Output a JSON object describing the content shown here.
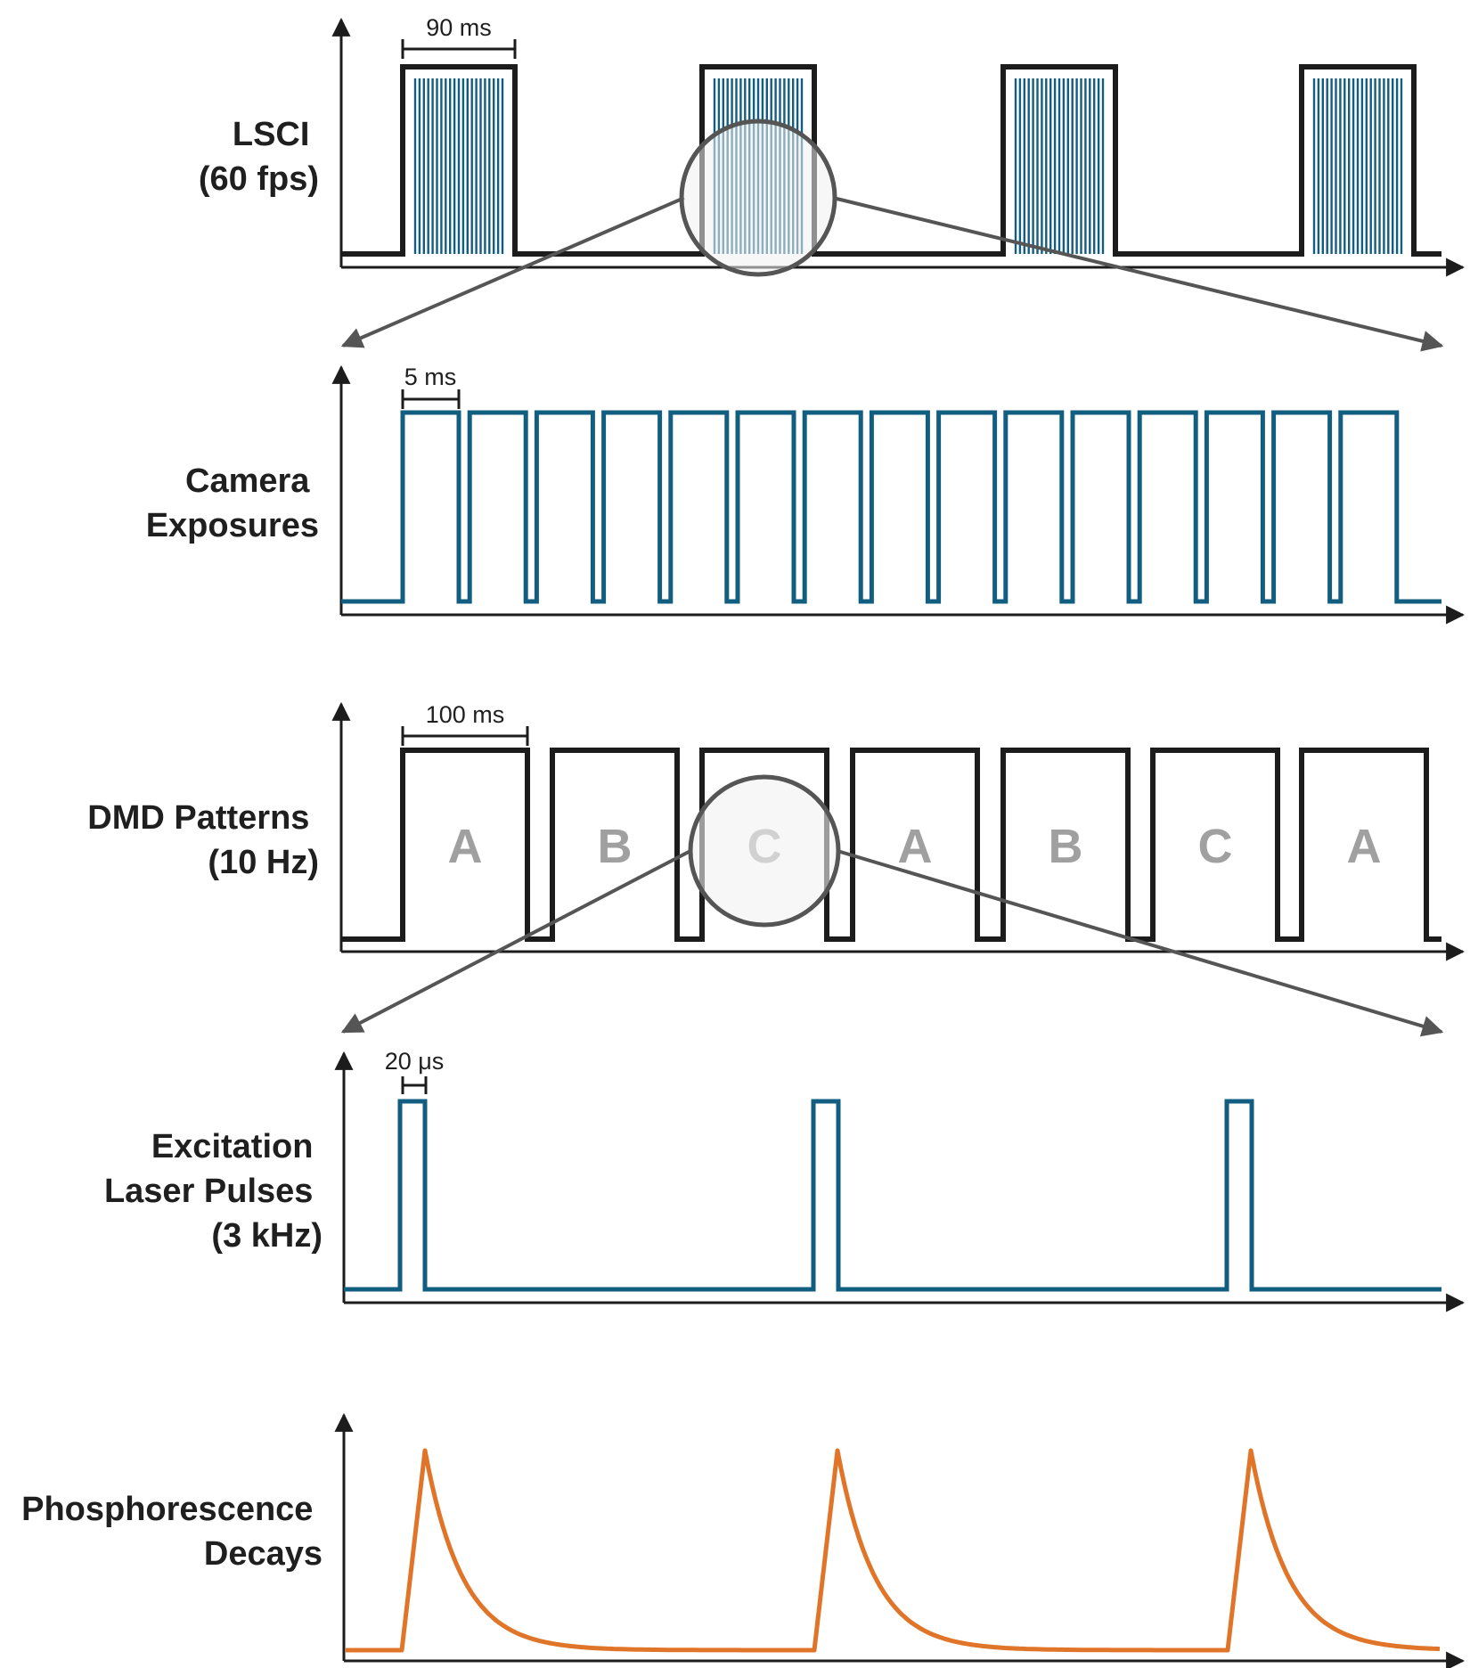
{
  "colors": {
    "black": "#1c1c1c",
    "teal": "#125e80",
    "orange": "#e07428",
    "gray": "#555555",
    "letter": "#a0a0a0",
    "lens_fill": "#f1f1f1"
  },
  "rows": {
    "lsci": {
      "label": [
        "LSCI",
        "(60 fps)"
      ],
      "scale_label": "90 ms",
      "pulse_count": 4
    },
    "camera": {
      "label": [
        "Camera",
        "Exposures"
      ],
      "scale_label": "5 ms",
      "pulse_count": 15
    },
    "dmd": {
      "label": [
        "DMD Patterns",
        "(10 Hz)"
      ],
      "scale_label": "100 ms",
      "patterns": [
        "A",
        "B",
        "C",
        "A",
        "B",
        "C",
        "A"
      ]
    },
    "laser": {
      "label": [
        "Excitation",
        "Laser Pulses",
        "(3 kHz)"
      ],
      "scale_label": "20 μs",
      "pulse_count": 3
    },
    "phosphorescence": {
      "label": [
        "Phosphorescence",
        "Decays"
      ],
      "decay_count": 3
    }
  }
}
